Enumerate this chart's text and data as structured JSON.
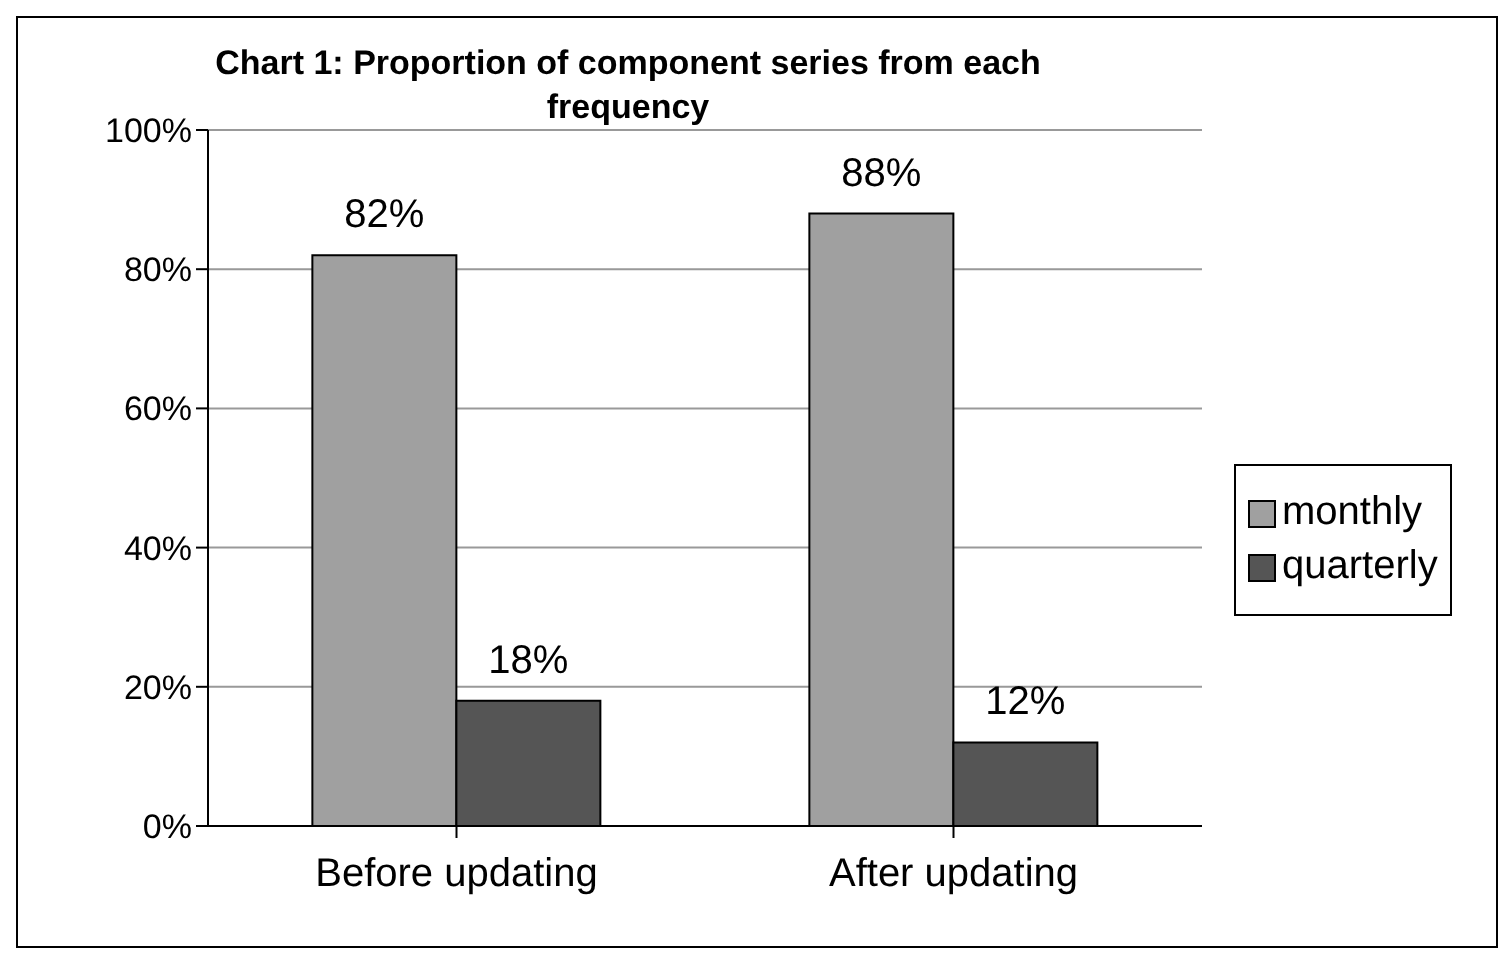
{
  "chart_data": {
    "type": "bar",
    "title": "Chart 1: Proportion of component series from each frequency",
    "categories": [
      "Before updating",
      "After updating"
    ],
    "series": [
      {
        "name": "monthly",
        "color": "#a0a0a0",
        "values": [
          82,
          88
        ],
        "value_labels": [
          "82%",
          "88%"
        ]
      },
      {
        "name": "quarterly",
        "color": "#555555",
        "values": [
          18,
          12
        ],
        "value_labels": [
          "18%",
          "12%"
        ]
      }
    ],
    "ylim": [
      0,
      100
    ],
    "yticks": [
      {
        "value": 0,
        "label": "0%"
      },
      {
        "value": 20,
        "label": "20%"
      },
      {
        "value": 40,
        "label": "40%"
      },
      {
        "value": 60,
        "label": "60%"
      },
      {
        "value": 80,
        "label": "80%"
      },
      {
        "value": 100,
        "label": "100%"
      }
    ],
    "grid": "y",
    "legend": "right"
  }
}
